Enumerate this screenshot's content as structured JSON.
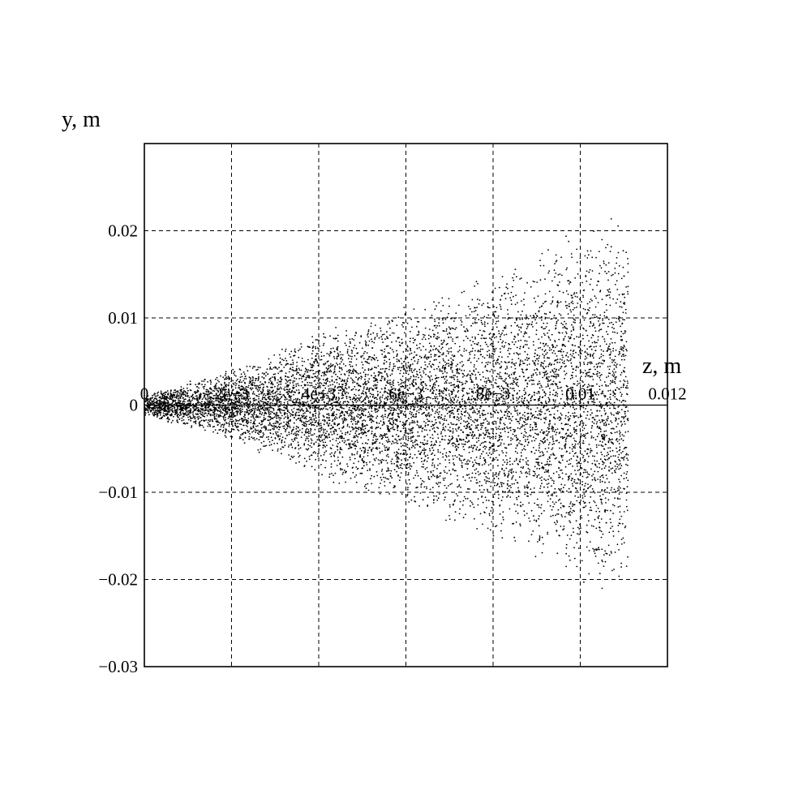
{
  "chart_data": {
    "type": "scatter",
    "title": "",
    "xlabel": "z, m",
    "ylabel": "y, m",
    "xlim": [
      0,
      0.012
    ],
    "ylim": [
      -0.03,
      0.03
    ],
    "grid": true,
    "x_ticks": [
      0,
      0.002,
      0.004,
      0.006,
      0.008,
      0.01,
      0.012
    ],
    "x_tick_labels": [
      "0",
      "2e−3",
      "4e−3",
      "6e−3",
      "8e−3",
      "0.01",
      "0.012"
    ],
    "y_ticks": [
      0.02,
      0.01,
      0,
      -0.01,
      -0.02,
      -0.03
    ],
    "y_tick_labels": [
      "0.02",
      "0.01",
      "0",
      "−0.01",
      "−0.02",
      "−0.03"
    ],
    "series": [
      {
        "color": "#000000",
        "marker": "dot",
        "description_of_distribution": "particle cloud; dense near origin, widening cone",
        "envelope": {
          "z": [
            0,
            0.002,
            0.004,
            0.006,
            0.008,
            0.01,
            0.0105,
            0.0111
          ],
          "y_max": [
            0.0012,
            0.0042,
            0.0085,
            0.0118,
            0.0155,
            0.0205,
            0.0222,
            0.0205
          ],
          "y_min": [
            -0.0012,
            -0.0042,
            -0.0085,
            -0.0118,
            -0.0155,
            -0.0205,
            -0.0222,
            -0.0205
          ]
        },
        "z_range": [
          0,
          0.0111
        ],
        "point_count": 9000
      }
    ]
  }
}
